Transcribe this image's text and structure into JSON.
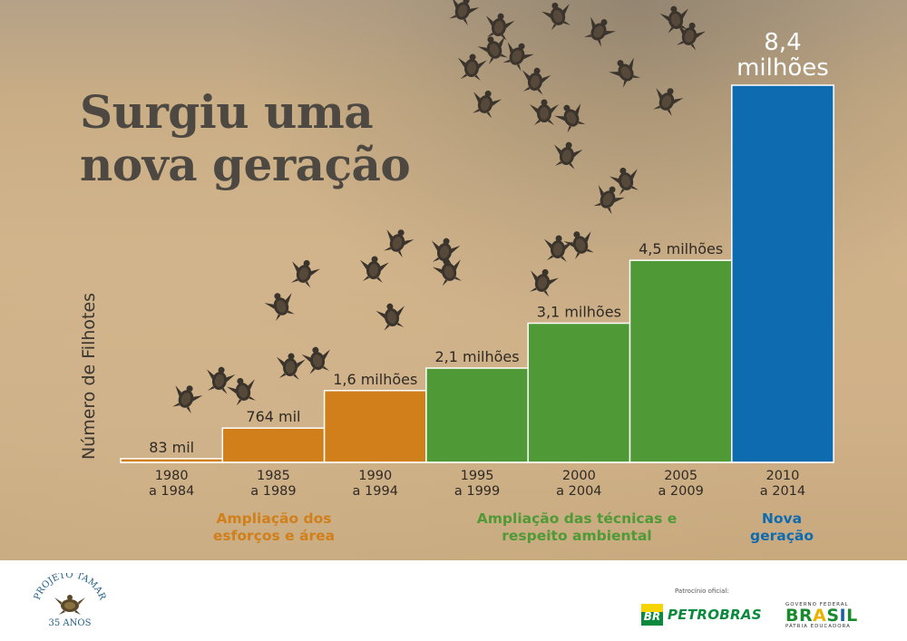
{
  "headline": {
    "line1": "Surgiu uma",
    "line2": "nova geração"
  },
  "colors": {
    "phase1": "#d17f1a",
    "phase2": "#4f9a36",
    "phase3": "#0e6bb0"
  },
  "chart_data": {
    "type": "bar",
    "title": "",
    "ylabel": "Número de Filhotes",
    "xlabel": "",
    "grid": false,
    "legend": "none",
    "ylim": [
      0,
      8.4
    ],
    "unit": "milhões",
    "categories": [
      [
        "1980",
        "a 1984"
      ],
      [
        "1985",
        "a 1989"
      ],
      [
        "1990",
        "a 1994"
      ],
      [
        "1995",
        "a 1999"
      ],
      [
        "2000",
        "a 2004"
      ],
      [
        "2005",
        "a 2009"
      ],
      [
        "2010",
        "a 2014"
      ]
    ],
    "values": [
      0.083,
      0.764,
      1.6,
      2.1,
      3.1,
      4.5,
      8.4
    ],
    "value_labels": [
      [
        "83 mil"
      ],
      [
        "764 mil"
      ],
      [
        "1,6 milhões"
      ],
      [
        "2,1 milhões"
      ],
      [
        "3,1 milhões"
      ],
      [
        "4,5 milhões"
      ],
      [
        "8,4",
        "milhões"
      ]
    ],
    "bar_colors": [
      "#d17f1a",
      "#d17f1a",
      "#d17f1a",
      "#4f9a36",
      "#4f9a36",
      "#4f9a36",
      "#0e6bb0"
    ],
    "phases": [
      {
        "lines": [
          "Ampliação dos",
          "esforços e área"
        ],
        "color": "#d17f1a"
      },
      {
        "lines": [
          "Ampliação das técnicas e",
          "respeito ambiental"
        ],
        "color": "#4f9a36"
      },
      {
        "lines": [
          "Nova",
          "geração"
        ],
        "color": "#0e6bb0"
      }
    ]
  },
  "footer": {
    "logo_tamar": {
      "icon": "turtle-seal-icon",
      "arc_text": "PROJETO TAMAR",
      "years": "35 ANOS"
    },
    "sponsor_label": "Patrocínio oficial:",
    "petrobras": {
      "mark": "BR",
      "name": "PETROBRAS"
    },
    "brasil": {
      "top": "GOVERNO FEDERAL",
      "word": "BRASIL",
      "bottom": "PÁTRIA EDUCADORA"
    }
  }
}
